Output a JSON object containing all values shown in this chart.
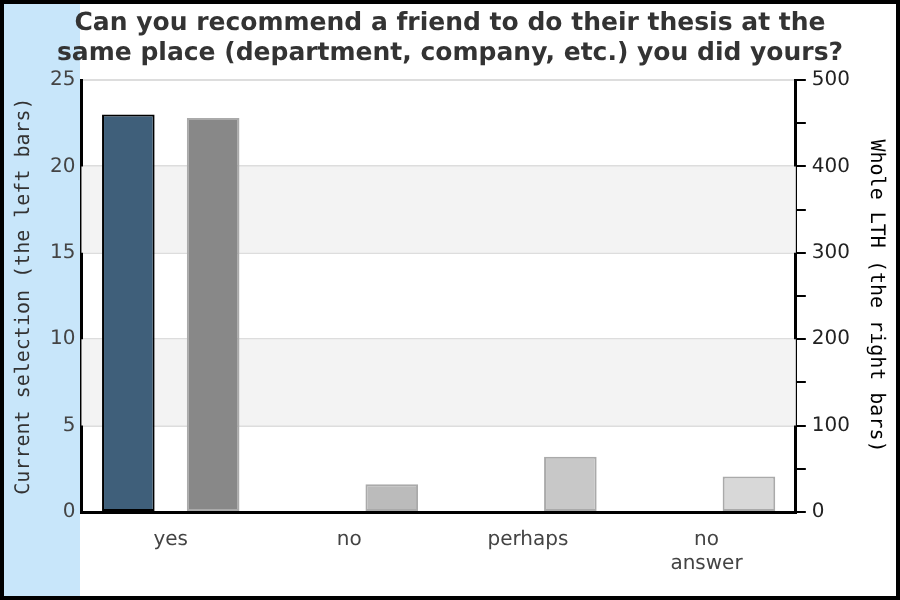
{
  "chart_data": {
    "type": "bar",
    "title": "Can you recommend a friend to do their thesis at the same place (department, company, etc.) you did yours?",
    "ylabel": "Current selection (the left bars)",
    "y2label": "Whole LTH (the right bars)",
    "categories": [
      "yes",
      "no",
      "perhaps",
      "no answer"
    ],
    "series": [
      {
        "color": "#3f5f7a",
        "values": [
          23,
          0,
          0,
          0
        ]
      },
      {
        "axis": "y2",
        "colors": [
          "#888888",
          "#bbbbbb",
          "#c8c8c8",
          "#d8d8d8"
        ],
        "values": [
          456,
          32,
          64,
          41
        ]
      }
    ],
    "ylim": [
      0,
      25
    ],
    "yticks": [
      0,
      5,
      10,
      15,
      20,
      25
    ],
    "y2lim": [
      0,
      500
    ],
    "y2ticks": [
      0,
      {
        "value": 50,
        "label": null
      },
      100,
      {
        "value": 150,
        "label": null
      },
      200,
      {
        "value": 250,
        "label": null
      },
      300,
      {
        "value": 350,
        "label": null
      },
      400,
      {
        "value": 450,
        "label": null
      },
      500
    ],
    "bands": [
      {
        "axis": "y",
        "from": 5,
        "to": 10,
        "color": "#f3f3f3"
      },
      {
        "axis": "y",
        "from": 15,
        "to": 20,
        "color": "#f3f3f3"
      }
    ],
    "grid": "y",
    "legend": false
  }
}
